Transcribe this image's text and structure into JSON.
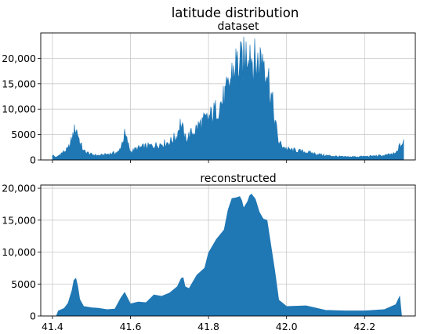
{
  "figure": {
    "title": "latitude distribution",
    "fill_color": "#1f77b4"
  },
  "chart_data": [
    {
      "type": "area",
      "title": "dataset",
      "xlabel": "",
      "ylabel": "",
      "xlim": [
        41.37,
        42.33
      ],
      "ylim": [
        0,
        25000
      ],
      "x_ticks": [
        41.4,
        41.6,
        41.8,
        42.0,
        42.2
      ],
      "x_tick_labels": [],
      "y_ticks": [
        0,
        5000,
        10000,
        15000,
        20000
      ],
      "y_tick_labels": [
        "0",
        "5000",
        "10,000",
        "15,000",
        "20,000"
      ],
      "grid": true,
      "noisy": true,
      "series": [
        {
          "color": "#1f77b4",
          "x": [
            41.4,
            41.41,
            41.42,
            41.44,
            41.45,
            41.455,
            41.46,
            41.465,
            41.47,
            41.48,
            41.5,
            41.52,
            41.55,
            41.57,
            41.58,
            41.585,
            41.59,
            41.6,
            41.62,
            41.64,
            41.66,
            41.68,
            41.7,
            41.72,
            41.725,
            41.73,
            41.74,
            41.76,
            41.78,
            41.8,
            41.82,
            41.84,
            41.85,
            41.86,
            41.87,
            41.88,
            41.89,
            41.9,
            41.905,
            41.91,
            41.92,
            41.93,
            41.94,
            41.95,
            41.96,
            41.97,
            41.98,
            42.0,
            42.05,
            42.1,
            42.15,
            42.2,
            42.25,
            42.28,
            42.29,
            42.3
          ],
          "y": [
            1000,
            500,
            1200,
            2200,
            4200,
            5800,
            6400,
            5400,
            3600,
            1800,
            1100,
            900,
            1300,
            1600,
            3800,
            5200,
            4200,
            1700,
            2400,
            2800,
            2900,
            3300,
            3600,
            5000,
            7200,
            7400,
            4200,
            5600,
            7400,
            8400,
            10200,
            12500,
            14200,
            17500,
            19500,
            19300,
            20000,
            22500,
            24000,
            21000,
            19500,
            20000,
            21500,
            18500,
            13500,
            8000,
            3500,
            2200,
            1600,
            900,
            600,
            700,
            900,
            1300,
            2800,
            3500
          ]
        }
      ]
    },
    {
      "type": "area",
      "title": "reconstructed",
      "xlabel": "",
      "ylabel": "",
      "xlim": [
        41.37,
        42.33
      ],
      "ylim": [
        0,
        20500
      ],
      "x_ticks": [
        41.4,
        41.6,
        41.8,
        42.0,
        42.2
      ],
      "x_tick_labels": [
        "41.4",
        "41.6",
        "41.8",
        "42.0",
        "42.2"
      ],
      "y_ticks": [
        0,
        5000,
        10000,
        15000,
        20000
      ],
      "y_tick_labels": [
        "0",
        "5000",
        "10,000",
        "15,000",
        "20,000"
      ],
      "grid": true,
      "noisy": false,
      "series": [
        {
          "color": "#1f77b4",
          "x": [
            41.41,
            41.415,
            41.43,
            41.44,
            41.45,
            41.455,
            41.46,
            41.465,
            41.47,
            41.48,
            41.5,
            41.52,
            41.54,
            41.56,
            41.575,
            41.585,
            41.6,
            41.62,
            41.64,
            41.66,
            41.68,
            41.7,
            41.72,
            41.73,
            41.735,
            41.74,
            41.75,
            41.77,
            41.79,
            41.8,
            41.82,
            41.84,
            41.85,
            41.86,
            41.87,
            41.88,
            41.885,
            41.89,
            41.9,
            41.905,
            41.91,
            41.92,
            41.93,
            41.94,
            41.95,
            41.96,
            41.97,
            41.98,
            42.0,
            42.05,
            42.1,
            42.15,
            42.2,
            42.25,
            42.28,
            42.29,
            42.295
          ],
          "y": [
            0,
            800,
            1200,
            2000,
            4000,
            5600,
            5900,
            4600,
            2600,
            1500,
            1300,
            1200,
            1000,
            1100,
            2800,
            3700,
            1900,
            2200,
            2100,
            3300,
            3100,
            3600,
            4600,
            5900,
            6000,
            4600,
            4300,
            6400,
            7500,
            9900,
            12000,
            13500,
            16600,
            18400,
            18500,
            18700,
            18100,
            16900,
            17900,
            18800,
            19100,
            18300,
            16300,
            15200,
            15000,
            11000,
            7000,
            2500,
            1500,
            1600,
            900,
            800,
            800,
            1000,
            1800,
            3100,
            0
          ]
        }
      ]
    }
  ]
}
